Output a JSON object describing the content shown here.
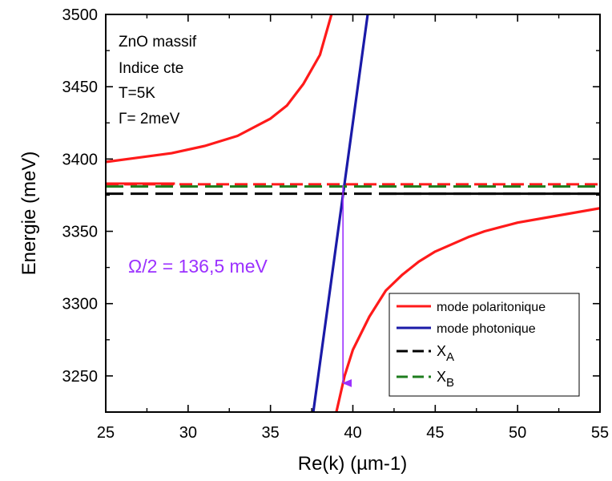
{
  "chart_data": {
    "type": "line",
    "xlabel": "Re(k) (µm-1)",
    "ylabel": "Energie (meV)",
    "xlim": [
      25,
      55
    ],
    "ylim": [
      3225,
      3500
    ],
    "xticks": [
      25,
      30,
      35,
      40,
      45,
      50,
      55
    ],
    "yticks": [
      3250,
      3300,
      3350,
      3400,
      3450,
      3500
    ],
    "grid": false,
    "legend_position": "bottom-right",
    "info_lines": [
      "ZnO massif",
      "Indice cte",
      "T=5K",
      "Γ= 2meV"
    ],
    "annotation": {
      "text": "Ω/2 = 136,5 meV",
      "color": "#9b30ff",
      "arrow_from": [
        39.4,
        3382
      ],
      "arrow_to": [
        39.4,
        3245
      ]
    },
    "series": [
      {
        "name": "mode polaritonique",
        "color": "#ff1a1a",
        "style": "solid",
        "segments": [
          [
            [
              25,
              3398
            ],
            [
              27,
              3401
            ],
            [
              29,
              3404
            ],
            [
              31,
              3409
            ],
            [
              33,
              3416
            ],
            [
              35,
              3428
            ],
            [
              36,
              3437
            ],
            [
              37,
              3452
            ],
            [
              38,
              3472
            ],
            [
              38.7,
              3500
            ]
          ],
          [
            [
              39.0,
              3225
            ],
            [
              39.5,
              3250
            ],
            [
              40,
              3268
            ],
            [
              41,
              3291
            ],
            [
              42,
              3309
            ],
            [
              43,
              3320
            ],
            [
              44,
              3329
            ],
            [
              45,
              3336
            ],
            [
              46,
              3341
            ],
            [
              47,
              3346
            ],
            [
              48,
              3350
            ],
            [
              49,
              3353
            ],
            [
              50,
              3356
            ],
            [
              52,
              3360
            ],
            [
              55,
              3366
            ]
          ]
        ]
      },
      {
        "name": "mode photonique",
        "color": "#1a1aa8",
        "style": "solid",
        "points": [
          [
            37.6,
            3225
          ],
          [
            40.9,
            3500
          ]
        ]
      },
      {
        "name": "XA",
        "sub": "A",
        "color": "#000000",
        "style": "dashed",
        "y": 3376
      },
      {
        "name": "XB",
        "sub": "B",
        "color": "#1e7d1e",
        "style": "dashed",
        "y": 3381
      }
    ],
    "extra_lines": [
      {
        "color": "#ff1a1a",
        "style": "dashed",
        "y": 3382.5
      },
      {
        "color": "#ff1a1a",
        "style": "solid",
        "y": 3383,
        "x": [
          25,
          29.2
        ]
      },
      {
        "color": "#000000",
        "style": "solid",
        "y": 3376,
        "x": [
          41.6,
          55
        ]
      }
    ]
  }
}
